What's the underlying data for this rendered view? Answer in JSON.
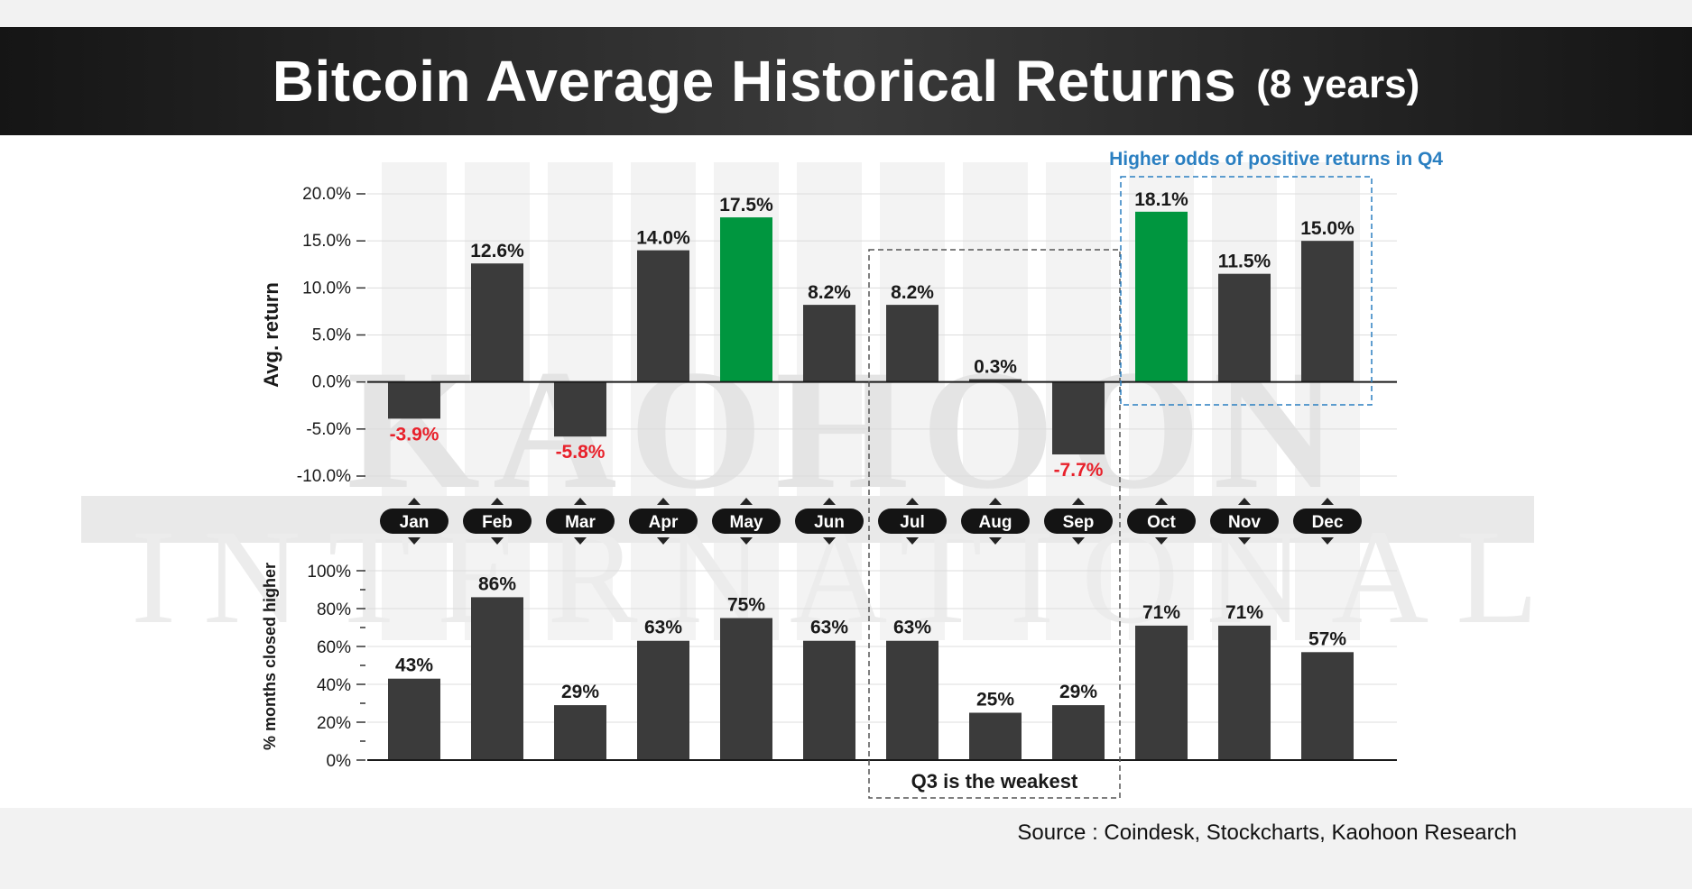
{
  "header": {
    "title": "Bitcoin Average Historical Returns",
    "subtitle": "(8 years)"
  },
  "watermark": {
    "line1": "KAOHOON",
    "line2": "INTERNATIONAL"
  },
  "annotations": {
    "q4_label": "Higher odds of positive returns in Q4",
    "q3_label": "Q3 is the weakest"
  },
  "source": "Source : Coindesk, Stockcharts, Kaohoon Research",
  "colors": {
    "bar": "#3b3b3b",
    "highlight": "#00963f",
    "negative_label": "#e8202a",
    "q4_box": "#2a7fc1",
    "q3_box": "#555555",
    "title_bg": "#1f1f1f"
  },
  "chart_data": [
    {
      "type": "bar",
      "ylabel": "Avg. return",
      "ylim": [
        -10,
        20
      ],
      "yticks": [
        "20.0%",
        "15.0%",
        "10.0%",
        "5.0%",
        "0.0%",
        "-5.0%",
        "-10.0%"
      ],
      "categories": [
        "Jan",
        "Feb",
        "Mar",
        "Apr",
        "May",
        "Jun",
        "Jul",
        "Aug",
        "Sep",
        "Oct",
        "Nov",
        "Dec"
      ],
      "values": [
        -3.9,
        12.6,
        -5.8,
        14.0,
        17.5,
        8.2,
        8.2,
        0.3,
        -7.7,
        18.1,
        11.5,
        15.0
      ],
      "labels": [
        "-3.9%",
        "12.6%",
        "-5.8%",
        "14.0%",
        "17.5%",
        "8.2%",
        "8.2%",
        "0.3%",
        "-7.7%",
        "18.1%",
        "11.5%",
        "15.0%"
      ],
      "highlighted": [
        "May",
        "Oct"
      ],
      "grid": true
    },
    {
      "type": "bar",
      "ylabel": "% months closed higher",
      "ylim": [
        0,
        100
      ],
      "yticks": [
        "100%",
        "80%",
        "60%",
        "40%",
        "20%",
        "0%"
      ],
      "categories": [
        "Jan",
        "Feb",
        "Mar",
        "Apr",
        "May",
        "Jun",
        "Jul",
        "Aug",
        "Sep",
        "Oct",
        "Nov",
        "Dec"
      ],
      "values": [
        43,
        86,
        29,
        63,
        75,
        63,
        63,
        25,
        29,
        71,
        71,
        57
      ],
      "labels": [
        "43%",
        "86%",
        "29%",
        "63%",
        "75%",
        "63%",
        "63%",
        "25%",
        "29%",
        "71%",
        "71%",
        "57%"
      ],
      "grid": true
    }
  ]
}
